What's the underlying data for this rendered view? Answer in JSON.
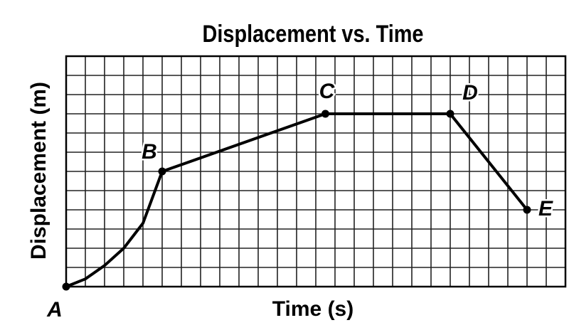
{
  "chart_data": {
    "type": "line",
    "title": "Displacement vs. Time",
    "x_label": "Time (s)",
    "y_label": "Displacement (m)",
    "x": [
      0,
      1,
      2,
      3,
      4,
      5,
      13.5,
      20,
      24
    ],
    "series": [
      {
        "color": "#000000",
        "values": [
          0,
          0.4,
          1.1,
          2,
          3.3,
          6,
          9,
          9,
          4
        ]
      }
    ],
    "annotations": [
      {
        "text": "A",
        "x": 0,
        "y": 0
      },
      {
        "text": "B",
        "x": 5,
        "y": 6
      },
      {
        "text": "C",
        "x": 13.5,
        "y": 9
      },
      {
        "text": "D",
        "x": 20,
        "y": 9
      },
      {
        "text": "E",
        "x": 24,
        "y": 4
      }
    ],
    "xlim": [
      0,
      26
    ],
    "ylim": [
      0,
      12
    ],
    "xticks": [
      0,
      1,
      2,
      3,
      4,
      5,
      6,
      7,
      8,
      9,
      10,
      11,
      12,
      13,
      14,
      15,
      16,
      17,
      18,
      19,
      20,
      21,
      22,
      23,
      24,
      25,
      26
    ],
    "yticks": [
      0,
      1,
      2,
      3,
      4,
      5,
      6,
      7,
      8,
      9,
      10,
      11,
      12
    ],
    "grid": true
  }
}
